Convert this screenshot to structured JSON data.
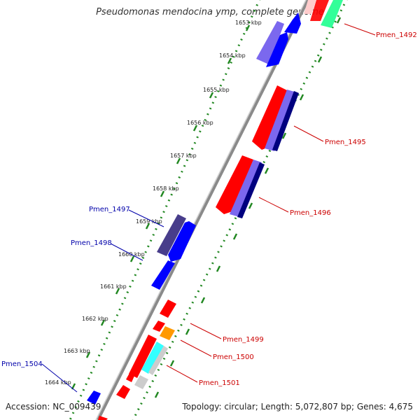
{
  "title": "Pseudomonas mendocina ymp, complete genome",
  "footer": {
    "accession": "Accession: NC_009439",
    "topology": "Topology: circular; Length: 5,072,807 bp; Genes: 4,675"
  },
  "ticks": [
    {
      "label": "1653 kbp"
    },
    {
      "label": "1654 kbp"
    },
    {
      "label": "1655 kbp"
    },
    {
      "label": "1656 kbp"
    },
    {
      "label": "1657 kbp"
    },
    {
      "label": "1658 kbp"
    },
    {
      "label": "1659 kbp"
    },
    {
      "label": "1660 kbp"
    },
    {
      "label": "1661 kbp"
    },
    {
      "label": "1662 kbp"
    },
    {
      "label": "1663 kbp"
    },
    {
      "label": "1664 kbp"
    }
  ],
  "gene_labels": {
    "pmen_1492": "Pmen_1492",
    "pmen_1495": "Pmen_1495",
    "pmen_1496": "Pmen_1496",
    "pmen_1497": "Pmen_1497",
    "pmen_1498": "Pmen_1498",
    "pmen_1499": "Pmen_1499",
    "pmen_1500": "Pmen_1500",
    "pmen_1501": "Pmen_1501",
    "pmen_1504": "Pmen_1504"
  },
  "colors": {
    "forward_label": "#cc0000",
    "reverse_label": "#0000aa",
    "tick": "#228822",
    "backbone": "#888888",
    "red": "#ff0000",
    "blue": "#0000ff",
    "dark_slate": "#483d8b",
    "medium_slate": "#7b68ee",
    "navy": "#00007f",
    "cyan": "#33ffff",
    "orange": "#ff9900",
    "grey": "#cccccc",
    "spring_green": "#33ff99"
  }
}
